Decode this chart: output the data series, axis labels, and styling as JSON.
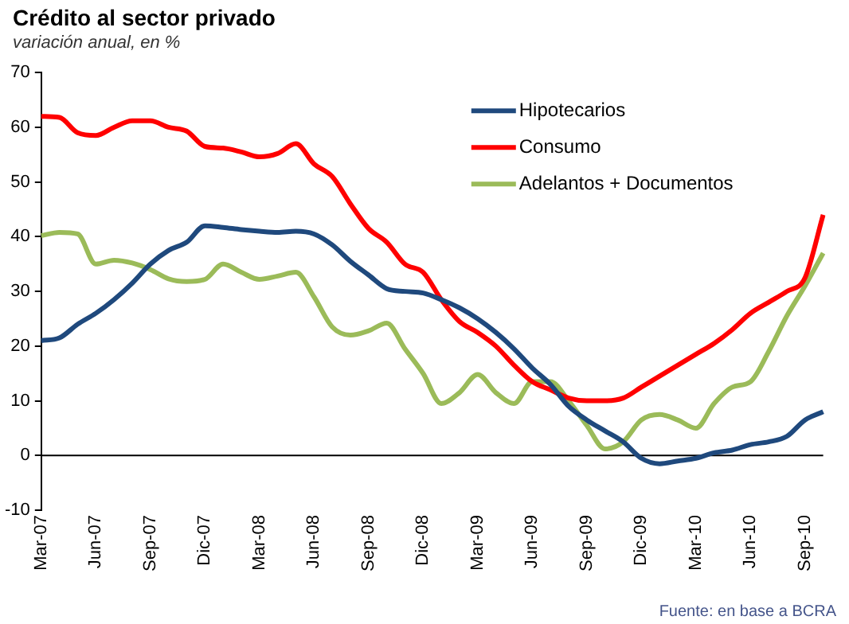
{
  "chart_data": {
    "type": "line",
    "title": "Crédito al sector privado",
    "subtitle": "variación anual, en %",
    "categories": [
      "Mar-07",
      null,
      null,
      "Jun-07",
      null,
      null,
      "Sep-07",
      null,
      null,
      "Dic-07",
      null,
      null,
      "Mar-08",
      null,
      null,
      "Jun-08",
      null,
      null,
      "Sep-08",
      null,
      null,
      "Dic-08",
      null,
      null,
      "Mar-09",
      null,
      null,
      "Jun-09",
      null,
      null,
      "Sep-09",
      null,
      null,
      "Dic-09",
      null,
      null,
      "Mar-10",
      null,
      null,
      "Jun-10",
      null,
      null,
      "Sep-10",
      null
    ],
    "series": [
      {
        "name": "Hipotecarios",
        "color": "#1f497d",
        "values": [
          21,
          21.5,
          24,
          26,
          28.5,
          31.5,
          35,
          37.5,
          39,
          42,
          41.7,
          41.3,
          41,
          40.8,
          41,
          40.5,
          38.5,
          35.5,
          33,
          30.5,
          30,
          29.7,
          28.5,
          27,
          25,
          22.5,
          19.5,
          16,
          13,
          9,
          6.5,
          4.5,
          2.5,
          -0.5,
          -1.5,
          -1,
          -0.5,
          0.5,
          1,
          2,
          2.5,
          3.5,
          6.5,
          8
        ]
      },
      {
        "name": "Consumo",
        "color": "#ff0000",
        "values": [
          62,
          61.8,
          59,
          58.5,
          60,
          61.2,
          61.2,
          60,
          59.3,
          56.5,
          56.2,
          55.5,
          54.6,
          55.2,
          57,
          53.3,
          51,
          46,
          41.5,
          39,
          35,
          33.5,
          28.5,
          24.5,
          22.5,
          20,
          16.5,
          13.5,
          12,
          10.5,
          10,
          10,
          10.5,
          12.5,
          14.5,
          16.5,
          18.5,
          20.5,
          23,
          26,
          28,
          30,
          32.5,
          44
        ]
      },
      {
        "name": "Adelantos + Documentos",
        "color": "#9bbb59",
        "values": [
          40.2,
          40.8,
          40.5,
          35,
          35.7,
          35.2,
          34,
          32.3,
          31.8,
          32.2,
          35,
          33.5,
          32.2,
          32.8,
          33.5,
          29,
          23.5,
          22,
          22.8,
          24.2,
          19.5,
          15,
          9.5,
          11.5,
          14.8,
          11.5,
          9.5,
          13.5,
          13.5,
          10,
          5.5,
          1.2,
          2.5,
          6.5,
          7.5,
          6.5,
          5,
          9.5,
          12.5,
          13.5,
          19,
          25.5,
          31,
          37
        ]
      }
    ],
    "ref_lines": [
      {
        "axis": "y",
        "value": 0,
        "color": "#000000"
      }
    ],
    "ylim": [
      -10,
      70
    ],
    "yticks": [
      -10,
      0,
      10,
      20,
      30,
      40,
      50,
      60,
      70
    ],
    "grid": false,
    "legend": "top right",
    "marker": "none",
    "line_style": "solid",
    "annotations": [
      "Fuente: en base a BCRA"
    ]
  }
}
